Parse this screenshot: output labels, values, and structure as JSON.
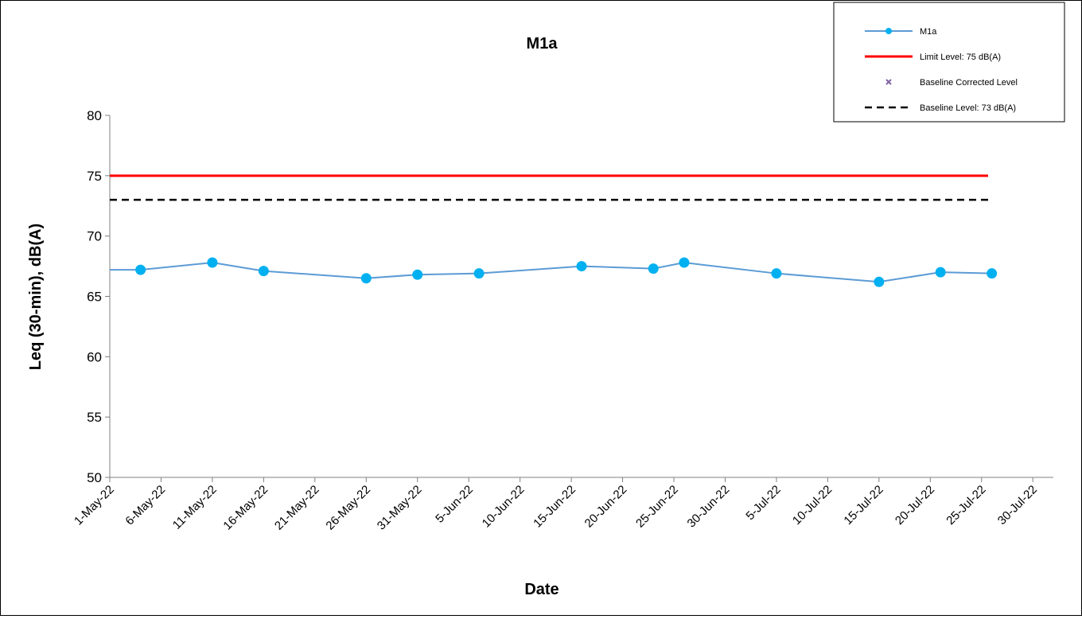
{
  "chart_data": {
    "type": "line",
    "title": "M1a",
    "xlabel": "Date",
    "ylabel": "Leq (30-min), dB(A)",
    "ylim": [
      50,
      80
    ],
    "yticks": [
      50,
      55,
      60,
      65,
      70,
      75,
      80
    ],
    "xlim": [
      "2022-05-01",
      "2022-08-01"
    ],
    "xticks": [
      "2022-05-01",
      "2022-05-06",
      "2022-05-11",
      "2022-05-16",
      "2022-05-21",
      "2022-05-26",
      "2022-05-31",
      "2022-06-05",
      "2022-06-10",
      "2022-06-15",
      "2022-06-20",
      "2022-06-25",
      "2022-06-30",
      "2022-07-05",
      "2022-07-10",
      "2022-07-15",
      "2022-07-20",
      "2022-07-25",
      "2022-07-30",
      "2022-08-04"
    ],
    "xtick_labels": [
      "1-May-22",
      "6-May-22",
      "11-May-22",
      "16-May-22",
      "21-May-22",
      "26-May-22",
      "31-May-22",
      "5-Jun-22",
      "10-Jun-22",
      "15-Jun-22",
      "20-Jun-22",
      "25-Jun-22",
      "30-Jun-22",
      "5-Jul-22",
      "10-Jul-22",
      "15-Jul-22",
      "20-Jul-22",
      "25-Jul-22",
      "30-Jul-22"
    ],
    "series": [
      {
        "name": "M1a",
        "color": "#5B9BD5",
        "marker_color": "#00B0F0",
        "x": [
          "2022-04-28",
          "2022-05-04",
          "2022-05-11",
          "2022-05-16",
          "2022-05-26",
          "2022-05-31",
          "2022-06-06",
          "2022-06-16",
          "2022-06-23",
          "2022-06-26",
          "2022-07-05",
          "2022-07-15",
          "2022-07-21",
          "2022-07-26"
        ],
        "y": [
          67.2,
          67.2,
          67.8,
          67.1,
          66.5,
          66.8,
          66.9,
          67.5,
          67.3,
          67.8,
          66.9,
          66.2,
          67.0,
          66.9
        ],
        "first_point_marker": false
      }
    ],
    "reference_lines": [
      {
        "name": "Limit Level: 75 dB(A)",
        "value": 75,
        "color": "#FF0000",
        "style": "solid"
      },
      {
        "name": "Baseline Level: 73 dB(A)",
        "value": 73,
        "color": "#000000",
        "style": "dashed"
      }
    ],
    "extra_legend": [
      {
        "name": "Baseline Corrected Level",
        "color": "#8064A2",
        "marker": "x"
      }
    ],
    "legend_position": "top-right",
    "grid": false
  }
}
